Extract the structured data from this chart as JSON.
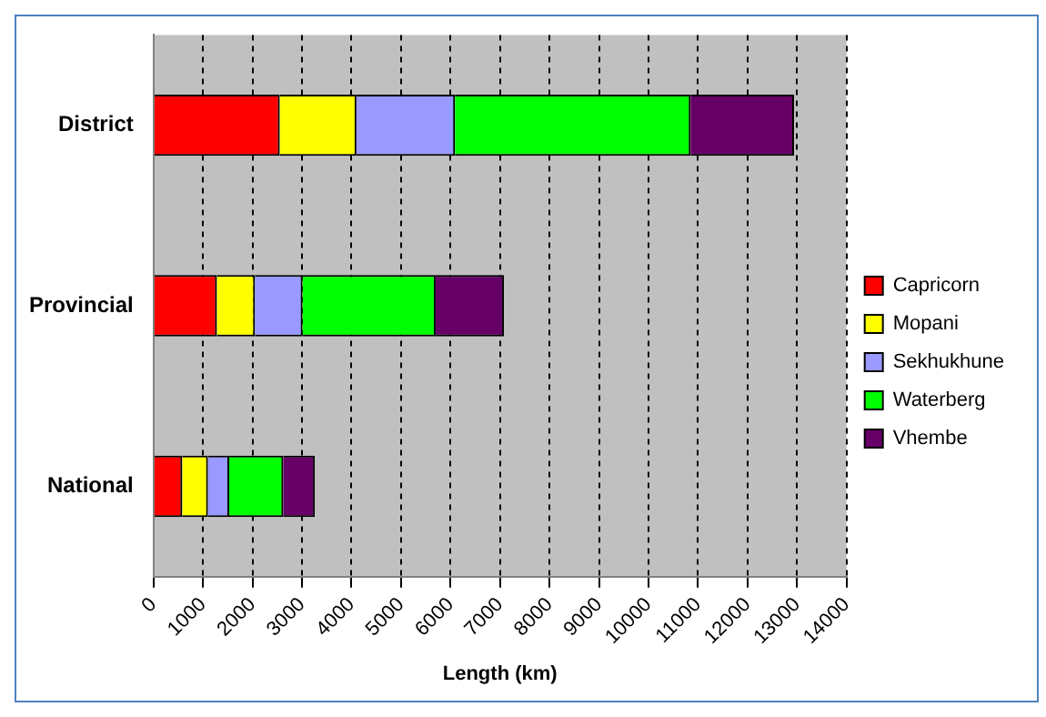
{
  "chart_data": {
    "type": "bar",
    "orientation": "horizontal",
    "stacked": true,
    "xlabel": "Length (km)",
    "categories": [
      "District",
      "Provincial",
      "National"
    ],
    "series": [
      {
        "name": "Capricorn",
        "color": "#ff0000",
        "values": [
          2550,
          1280,
          580
        ]
      },
      {
        "name": "Mopani",
        "color": "#ffff00",
        "values": [
          1550,
          770,
          520
        ]
      },
      {
        "name": "Sekhukhune",
        "color": "#9999ff",
        "values": [
          1990,
          960,
          430
        ]
      },
      {
        "name": "Waterberg",
        "color": "#00ff00",
        "values": [
          4760,
          2690,
          1090
        ]
      },
      {
        "name": "Vhembe",
        "color": "#660066",
        "values": [
          2090,
          1380,
          640
        ]
      }
    ],
    "xlim": [
      0,
      14000
    ],
    "xticks": [
      0,
      1000,
      2000,
      3000,
      4000,
      5000,
      6000,
      7000,
      8000,
      9000,
      10000,
      11000,
      12000,
      13000,
      14000
    ],
    "grid": "x",
    "legend": "right"
  }
}
